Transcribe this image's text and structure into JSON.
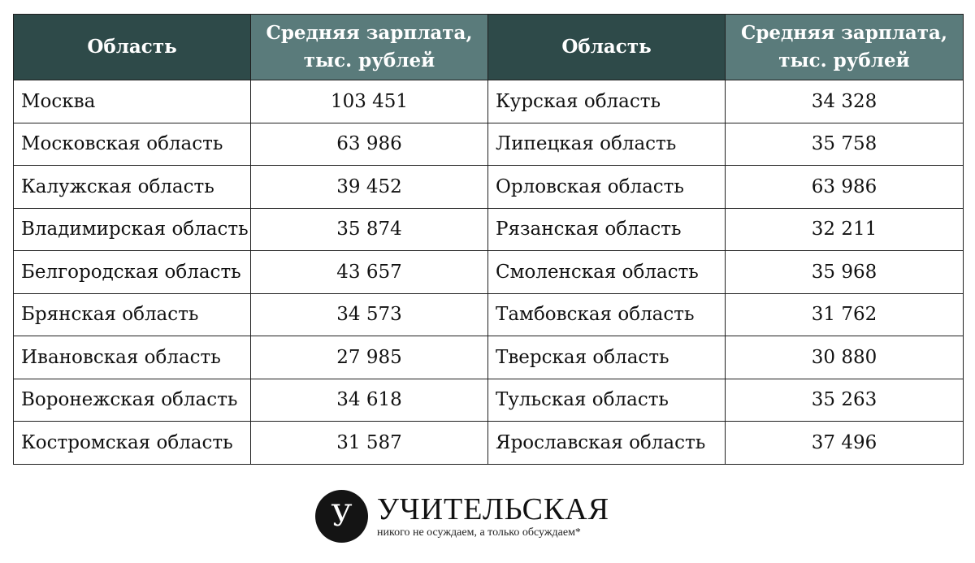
{
  "table": {
    "headers": {
      "region": "Область",
      "salary_line1": "Средняя зарплата,",
      "salary_line2": "тыс. рублей"
    },
    "rows": [
      {
        "left_region": "Москва",
        "left_value": "103 451",
        "right_region": "Курская область",
        "right_value": "34 328"
      },
      {
        "left_region": "Московская область",
        "left_value": "63 986",
        "right_region": "Липецкая область",
        "right_value": "35 758"
      },
      {
        "left_region": "Калужская область",
        "left_value": "39 452",
        "right_region": "Орловская область",
        "right_value": "63 986"
      },
      {
        "left_region": "Владимирская область",
        "left_value": "35 874",
        "right_region": "Рязанская область",
        "right_value": "32 211"
      },
      {
        "left_region": "Белгородская область",
        "left_value": "43 657",
        "right_region": "Смоленская область",
        "right_value": "35 968"
      },
      {
        "left_region": "Брянская область",
        "left_value": "34 573",
        "right_region": "Тамбовская область",
        "right_value": "31 762"
      },
      {
        "left_region": "Ивановская область",
        "left_value": "27 985",
        "right_region": "Тверская область",
        "right_value": "30 880"
      },
      {
        "left_region": "Воронежская область",
        "left_value": "34 618",
        "right_region": "Тульская область",
        "right_value": "35 263"
      },
      {
        "left_region": "Костромская область",
        "left_value": "31 587",
        "right_region": "Ярославская область",
        "right_value": "37 496"
      }
    ]
  },
  "brand": {
    "logo_letter": "У",
    "name": "УЧИТЕЛЬСКАЯ",
    "tagline": "никого не осуждаем, а только обсуждаем*"
  },
  "colors": {
    "header_dark": "#2e4a49",
    "header_light": "#5a7b7b"
  }
}
